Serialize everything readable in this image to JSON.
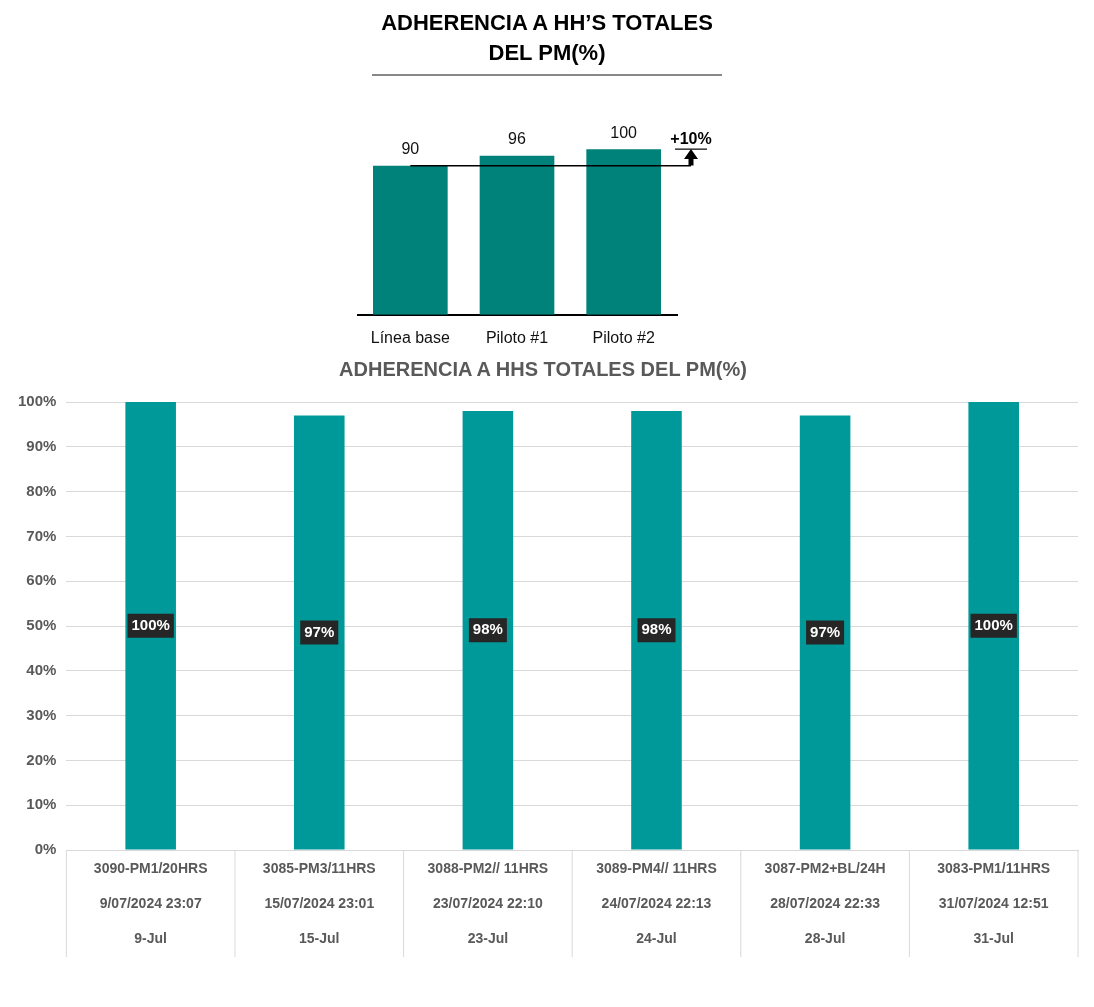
{
  "chart_data": [
    {
      "type": "bar",
      "title": "ADHERENCIA A HH’S TOTALES\nDEL PM(%)",
      "categories": [
        "Línea base",
        "Piloto #1",
        "Piloto #2"
      ],
      "values": [
        90,
        96,
        100
      ],
      "color": "#00827a",
      "data_labels": true,
      "grid": false,
      "tick_labels": "x",
      "ref_lines": [
        {
          "axis": "y",
          "value": 90,
          "color": "#000000"
        }
      ],
      "annotations": [
        {
          "text": "+10%",
          "x": "Piloto #2",
          "y": 100
        }
      ]
    },
    {
      "type": "bar",
      "title": "ADHERENCIA A HHS TOTALES DEL PM(%)",
      "categories": [
        "3090-PM1/20HRS\n9/07/2024 23:07\n9-Jul",
        "3085-PM3/11HRS\n15/07/2024 23:01\n15-Jul",
        "3088-PM2// 11HRS\n23/07/2024 22:10\n23-Jul",
        "3089-PM4// 11HRS\n24/07/2024 22:13\n24-Jul",
        "3087-PM2+BL/24H\n28/07/2024 22:33\n28-Jul",
        "3083-PM1/11HRS\n31/07/2024 12:51\n31-Jul"
      ],
      "values": [
        100,
        97,
        98,
        98,
        97,
        100
      ],
      "value_labels": [
        "100%",
        "97%",
        "98%",
        "98%",
        "97%",
        "100%"
      ],
      "color": "#009999",
      "ylim": [
        0,
        100
      ],
      "yticks": [
        {
          "value": 0,
          "label": "0%"
        },
        {
          "value": 10,
          "label": "10%"
        },
        {
          "value": 20,
          "label": "20%"
        },
        {
          "value": 30,
          "label": "30%"
        },
        {
          "value": 40,
          "label": "40%"
        },
        {
          "value": 50,
          "label": "50%"
        },
        {
          "value": 60,
          "label": "60%"
        },
        {
          "value": 70,
          "label": "70%"
        },
        {
          "value": 80,
          "label": "80%"
        },
        {
          "value": 90,
          "label": "90%"
        },
        {
          "value": 100,
          "label": "100%"
        }
      ],
      "grid": "y"
    }
  ]
}
